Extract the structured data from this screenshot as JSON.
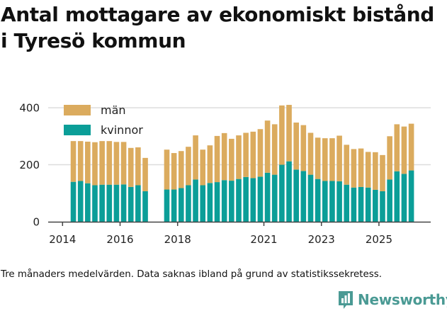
{
  "title_lines": [
    "Antal mottagare av ekonomiskt bistånd",
    "i Tyresö kommun"
  ],
  "footnote": "Tre månaders medelvärden. Data saknas ibland på grund av statistikssekretess.",
  "brand": {
    "name": "Newsworthy",
    "color": "#4a9a94"
  },
  "colors": {
    "men": "#dbab5e",
    "women": "#0b9e98",
    "grid": "#dddddd",
    "axis": "#444444"
  },
  "chart_data": {
    "type": "bar",
    "stacked": true,
    "title": "Antal mottagare av ekonomiskt bistånd i Tyresö kommun",
    "xlabel": "",
    "ylabel": "",
    "ylim": [
      0,
      430
    ],
    "yticks": [
      0,
      200,
      400
    ],
    "xticks": [
      {
        "label": "2014",
        "x": 2014.0
      },
      {
        "label": "2016",
        "x": 2016.0
      },
      {
        "label": "2018",
        "x": 2018.0
      },
      {
        "label": "2021",
        "x": 2021.0
      },
      {
        "label": "2023",
        "x": 2023.0
      },
      {
        "label": "2025",
        "x": 2025.0
      }
    ],
    "legend": {
      "position": "top-left",
      "entries": [
        "män",
        "kvinnor"
      ]
    },
    "x": [
      2014.375,
      2014.625,
      2014.875,
      2015.125,
      2015.375,
      2015.625,
      2015.875,
      2016.125,
      2016.375,
      2016.625,
      2016.875,
      2017.625,
      2017.875,
      2018.125,
      2018.375,
      2018.625,
      2018.875,
      2019.125,
      2019.375,
      2019.625,
      2019.875,
      2020.125,
      2020.375,
      2020.625,
      2020.875,
      2021.125,
      2021.375,
      2021.625,
      2021.875,
      2022.125,
      2022.375,
      2022.625,
      2022.875,
      2023.125,
      2023.375,
      2023.625,
      2023.875,
      2024.125,
      2024.375,
      2024.625,
      2024.875,
      2025.125,
      2025.375,
      2025.625,
      2025.875,
      2026.125
    ],
    "series": [
      {
        "name": "kvinnor",
        "color": "#0b9e98",
        "values": [
          140,
          143,
          135,
          128,
          130,
          130,
          130,
          131,
          122,
          128,
          107,
          113,
          113,
          118,
          128,
          148,
          128,
          136,
          139,
          146,
          144,
          150,
          157,
          153,
          158,
          172,
          165,
          200,
          212,
          183,
          178,
          165,
          150,
          143,
          143,
          142,
          130,
          120,
          122,
          120,
          112,
          107,
          148,
          177,
          168,
          180
        ]
      },
      {
        "name": "män",
        "color": "#dbab5e",
        "values": [
          143,
          140,
          146,
          151,
          153,
          153,
          150,
          149,
          137,
          133,
          117,
          140,
          128,
          130,
          135,
          155,
          125,
          132,
          162,
          165,
          147,
          153,
          155,
          163,
          167,
          183,
          177,
          208,
          198,
          165,
          161,
          147,
          145,
          150,
          150,
          160,
          140,
          135,
          135,
          125,
          132,
          127,
          152,
          165,
          166,
          164
        ]
      }
    ]
  }
}
